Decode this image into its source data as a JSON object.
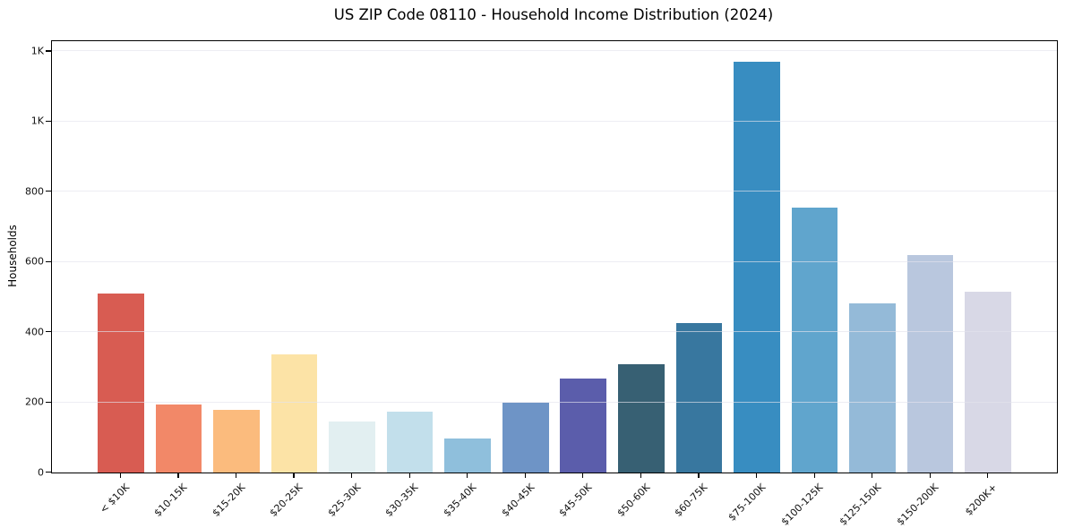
{
  "title": "US ZIP Code 08110 - Household Income Distribution (2024)",
  "chart_data": {
    "type": "bar",
    "title": "US ZIP Code 08110 - Household Income Distribution (2024)",
    "xlabel": "",
    "ylabel": "Households",
    "categories": [
      "< $10K",
      "$10-15K",
      "$15-20K",
      "$20-25K",
      "$25-30K",
      "$30-35K",
      "$35-40K",
      "$40-45K",
      "$45-50K",
      "$50-60K",
      "$60-75K",
      "$75-100K",
      "$100-125K",
      "$125-150K",
      "$150-200K",
      "$200K+"
    ],
    "values": [
      511,
      195,
      178,
      337,
      145,
      174,
      96,
      198,
      268,
      309,
      425,
      1170,
      755,
      482,
      620,
      516
    ],
    "bar_colors": [
      "#d85c52",
      "#f28868",
      "#fbbb7d",
      "#fce3a6",
      "#e2eff1",
      "#c2dfeb",
      "#8fbfdc",
      "#6e94c6",
      "#5b5dab",
      "#376073",
      "#38779f",
      "#388dc1",
      "#60a5cd",
      "#94bad8",
      "#b9c7de",
      "#d8d8e6"
    ],
    "ylim": [
      0,
      1229
    ],
    "ytick_values": [
      0,
      200,
      400,
      600,
      800,
      1000,
      1200
    ],
    "ytick_labels": [
      "0",
      "200",
      "400",
      "600",
      "800",
      "1K",
      "1K"
    ],
    "grid": "horizontal",
    "legend_position": "none",
    "background_color": "#ffffff",
    "spine_color": "#000000"
  }
}
